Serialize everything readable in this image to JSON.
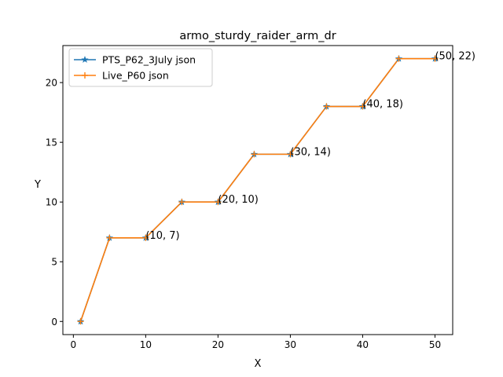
{
  "chart_data": {
    "type": "line",
    "title": "armo_sturdy_raider_arm_dr",
    "xlabel": "X",
    "ylabel": "Y",
    "xlim": [
      -1.45,
      52.45
    ],
    "ylim": [
      -1.1,
      23.1
    ],
    "xticks": [
      0,
      10,
      20,
      30,
      40,
      50
    ],
    "yticks": [
      0,
      5,
      10,
      15,
      20
    ],
    "grid": false,
    "legend_position": "upper-left",
    "x": [
      1,
      5,
      10,
      15,
      20,
      25,
      30,
      35,
      40,
      45,
      50
    ],
    "series": [
      {
        "name": "PTS_P62_3July json",
        "values": [
          0,
          7,
          7,
          10,
          10,
          14,
          14,
          18,
          18,
          22,
          22
        ],
        "color": "#1f77b4",
        "marker": "star"
      },
      {
        "name": "Live_P60 json",
        "values": [
          0,
          7,
          7,
          10,
          10,
          14,
          14,
          18,
          18,
          22,
          22
        ],
        "color": "#ff7f0e",
        "marker": "plus"
      }
    ],
    "annotations": [
      {
        "text": "(10, 7)",
        "x": 10,
        "y": 7
      },
      {
        "text": "(20, 10)",
        "x": 20,
        "y": 10
      },
      {
        "text": "(30, 14)",
        "x": 30,
        "y": 14
      },
      {
        "text": "(40, 18)",
        "x": 40,
        "y": 18
      },
      {
        "text": "(50, 22)",
        "x": 50,
        "y": 22
      }
    ]
  }
}
